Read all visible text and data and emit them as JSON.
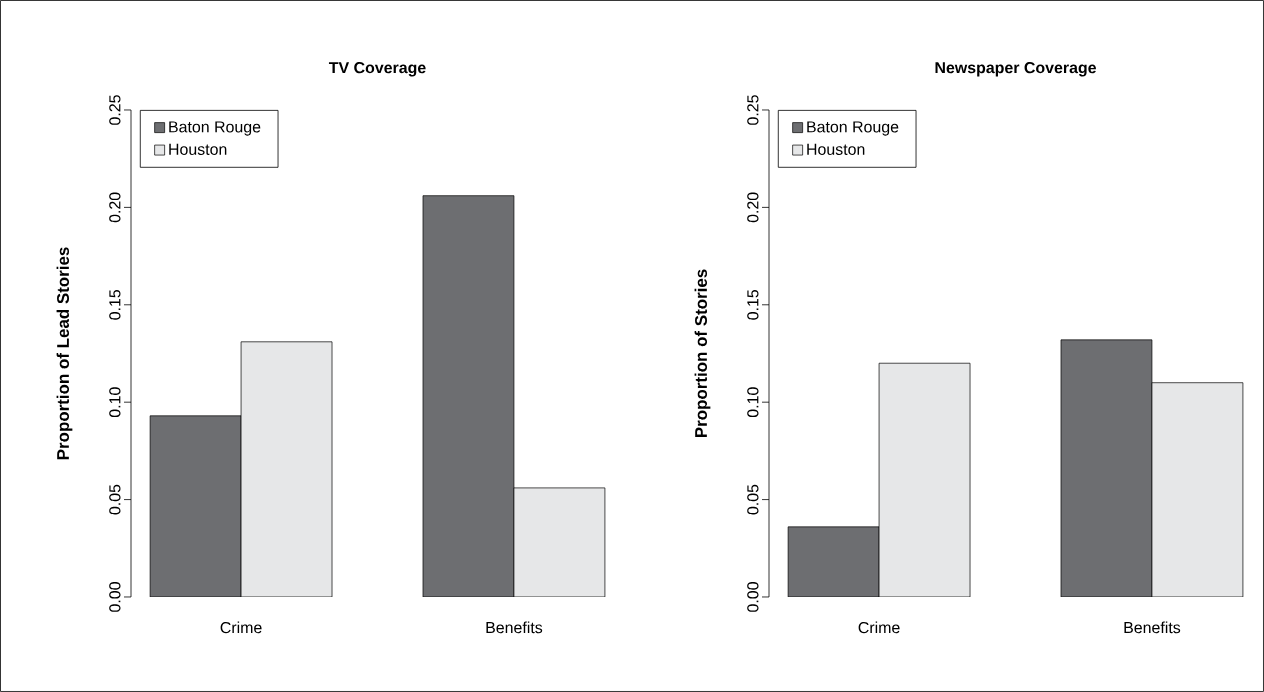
{
  "chart_data": [
    {
      "type": "bar",
      "title": "TV Coverage",
      "ylabel": "Proportion of Lead Stories",
      "categories": [
        "Crime",
        "Benefits"
      ],
      "series": [
        {
          "name": "Baton Rouge",
          "color": "#6d6e71",
          "values": [
            0.093,
            0.206
          ]
        },
        {
          "name": "Houston",
          "color": "#e6e7e8",
          "values": [
            0.131,
            0.056
          ]
        }
      ],
      "ylim": [
        0,
        0.25
      ],
      "yticks": [
        {
          "value": 0,
          "label": "0.00"
        },
        {
          "value": 0.05,
          "label": "0.05"
        },
        {
          "value": 0.1,
          "label": "0.10"
        },
        {
          "value": 0.15,
          "label": "0.15"
        },
        {
          "value": 0.2,
          "label": "0.20"
        },
        {
          "value": 0.25,
          "label": "0.25"
        }
      ],
      "legend": "top left"
    },
    {
      "type": "bar",
      "title": "Newspaper Coverage",
      "ylabel": "Proportion of Stories",
      "categories": [
        "Crime",
        "Benefits"
      ],
      "series": [
        {
          "name": "Baton Rouge",
          "color": "#6d6e71",
          "values": [
            0.036,
            0.132
          ]
        },
        {
          "name": "Houston",
          "color": "#e6e7e8",
          "values": [
            0.12,
            0.11
          ]
        }
      ],
      "ylim": [
        0,
        0.25
      ],
      "yticks": [
        {
          "value": 0,
          "label": "0.00"
        },
        {
          "value": 0.05,
          "label": "0.05"
        },
        {
          "value": 0.1,
          "label": "0.10"
        },
        {
          "value": 0.15,
          "label": "0.15"
        },
        {
          "value": 0.2,
          "label": "0.20"
        },
        {
          "value": 0.25,
          "label": "0.25"
        }
      ],
      "legend": "top left"
    }
  ]
}
